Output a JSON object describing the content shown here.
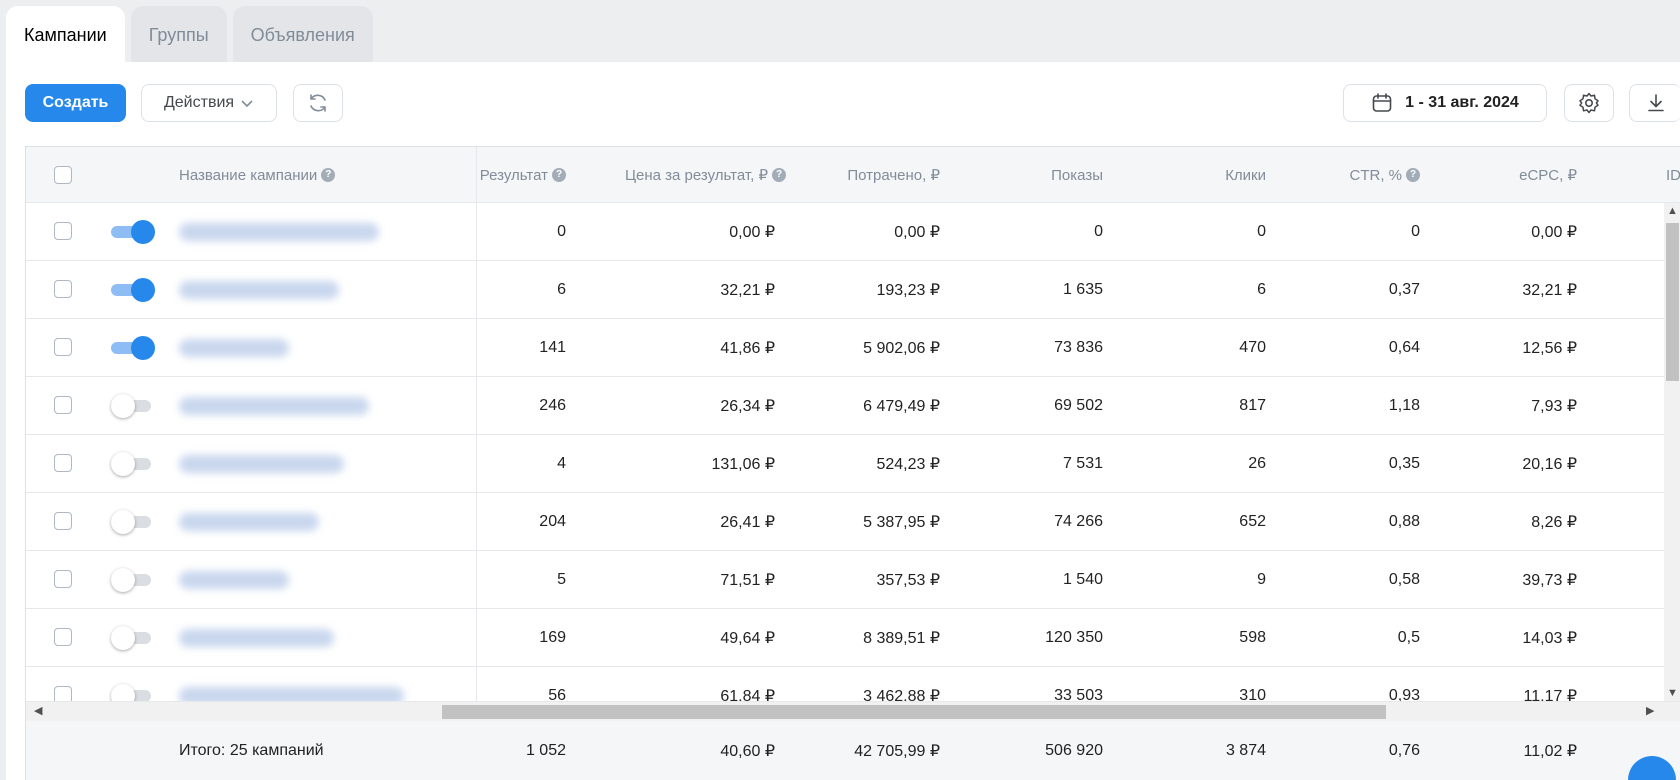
{
  "tabs": [
    {
      "label": "Кампании",
      "active": true
    },
    {
      "label": "Группы",
      "active": false
    },
    {
      "label": "Объявления",
      "active": false
    }
  ],
  "toolbar": {
    "create_label": "Создать",
    "actions_label": "Действия",
    "date_range": "1 - 31 авг. 2024"
  },
  "table": {
    "columns": {
      "name": "Название кампании",
      "result": "Результат",
      "cost_per_result": "Цена за результат, ₽",
      "spent": "Потрачено, ₽",
      "impressions": "Показы",
      "clicks": "Клики",
      "ctr": "CTR, %",
      "ecpc": "eCPC, ₽",
      "id": "ID"
    },
    "rows": [
      {
        "enabled": true,
        "result": "0",
        "cost_per_result": "0,00 ₽",
        "spent": "0,00 ₽",
        "impressions": "0",
        "clicks": "0",
        "ctr": "0",
        "ecpc": "0,00 ₽"
      },
      {
        "enabled": true,
        "result": "6",
        "cost_per_result": "32,21 ₽",
        "spent": "193,23 ₽",
        "impressions": "1 635",
        "clicks": "6",
        "ctr": "0,37",
        "ecpc": "32,21 ₽"
      },
      {
        "enabled": true,
        "result": "141",
        "cost_per_result": "41,86 ₽",
        "spent": "5 902,06 ₽",
        "impressions": "73 836",
        "clicks": "470",
        "ctr": "0,64",
        "ecpc": "12,56 ₽"
      },
      {
        "enabled": false,
        "result": "246",
        "cost_per_result": "26,34 ₽",
        "spent": "6 479,49 ₽",
        "impressions": "69 502",
        "clicks": "817",
        "ctr": "1,18",
        "ecpc": "7,93 ₽"
      },
      {
        "enabled": false,
        "result": "4",
        "cost_per_result": "131,06 ₽",
        "spent": "524,23 ₽",
        "impressions": "7 531",
        "clicks": "26",
        "ctr": "0,35",
        "ecpc": "20,16 ₽"
      },
      {
        "enabled": false,
        "result": "204",
        "cost_per_result": "26,41 ₽",
        "spent": "5 387,95 ₽",
        "impressions": "74 266",
        "clicks": "652",
        "ctr": "0,88",
        "ecpc": "8,26 ₽"
      },
      {
        "enabled": false,
        "result": "5",
        "cost_per_result": "71,51 ₽",
        "spent": "357,53 ₽",
        "impressions": "1 540",
        "clicks": "9",
        "ctr": "0,58",
        "ecpc": "39,73 ₽"
      },
      {
        "enabled": false,
        "result": "169",
        "cost_per_result": "49,64 ₽",
        "spent": "8 389,51 ₽",
        "impressions": "120 350",
        "clicks": "598",
        "ctr": "0,5",
        "ecpc": "14,03 ₽"
      },
      {
        "enabled": false,
        "result": "56",
        "cost_per_result": "61,84 ₽",
        "spent": "3 462,88 ₽",
        "impressions": "33 503",
        "clicks": "310",
        "ctr": "0,93",
        "ecpc": "11,17 ₽"
      }
    ],
    "totals": {
      "label": "Итого: 25 кампаний",
      "result": "1 052",
      "cost_per_result": "40,60 ₽",
      "spent": "42 705,99 ₽",
      "impressions": "506 920",
      "clicks": "3 874",
      "ctr": "0,76",
      "ecpc": "11,02 ₽"
    }
  },
  "colors": {
    "accent": "#2688eb",
    "toggle_on_track": "#8ebdf5",
    "background": "#edeef0"
  },
  "icons": [
    "chevron-down-icon",
    "refresh-icon",
    "calendar-icon",
    "gear-icon",
    "download-icon",
    "help-icon",
    "chat-icon"
  ]
}
